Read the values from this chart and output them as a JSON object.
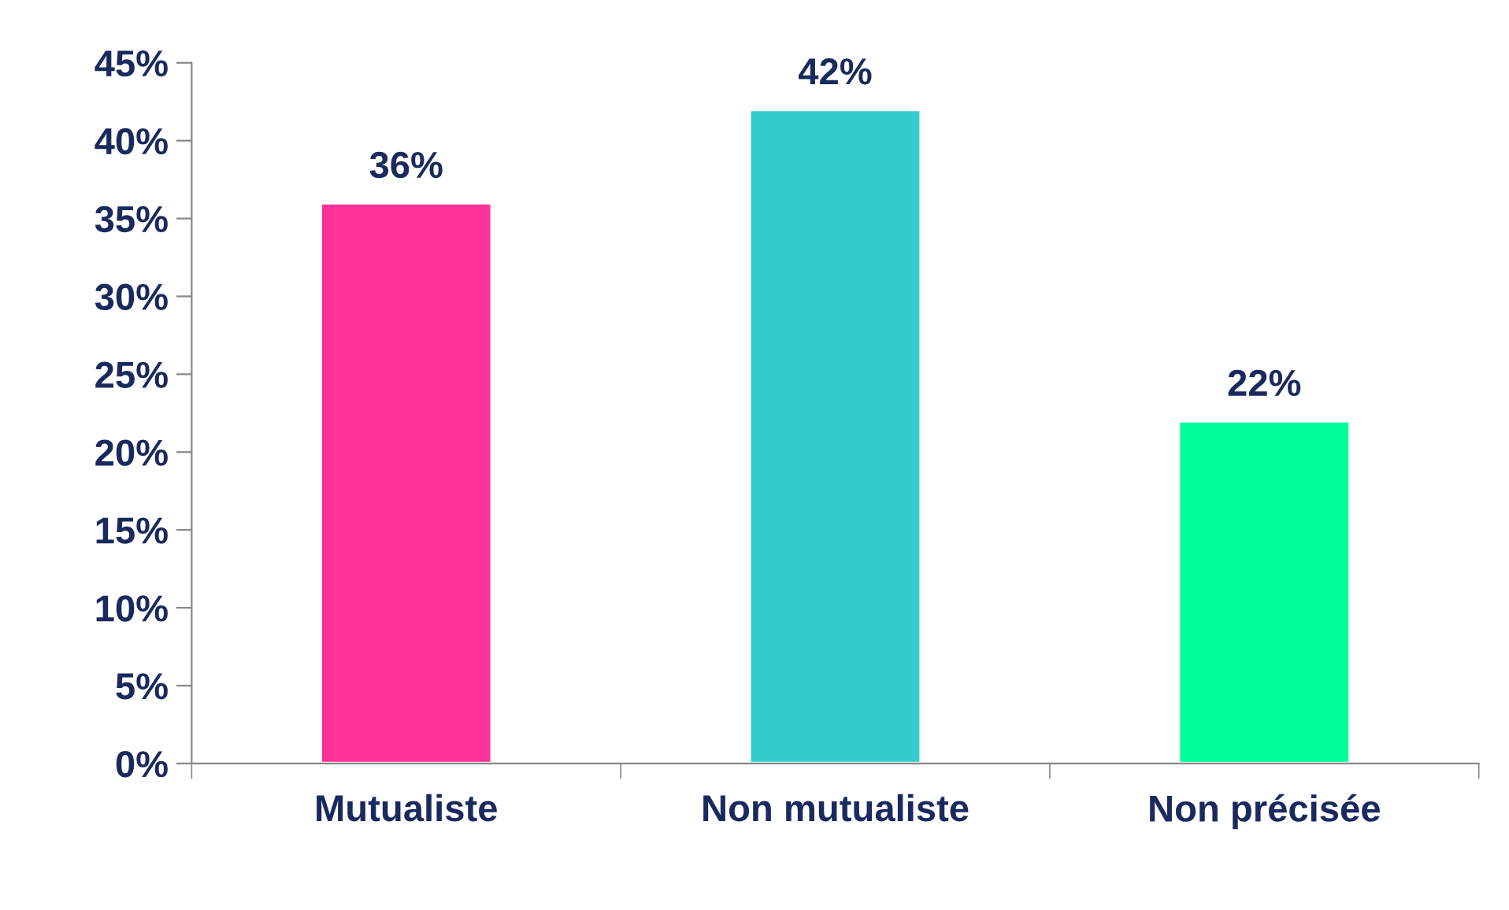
{
  "chart_data": {
    "type": "bar",
    "categories": [
      "Mutualiste",
      "Non mutualiste",
      "Non précisée"
    ],
    "values": [
      36,
      42,
      22
    ],
    "colors": [
      "#ff3399",
      "#33cccc",
      "#00ff99"
    ],
    "value_labels": [
      "36%",
      "42%",
      "22%"
    ],
    "ylim": [
      0,
      45
    ],
    "yticks": [
      {
        "value": 0,
        "label": "0%"
      },
      {
        "value": 5,
        "label": "5%"
      },
      {
        "value": 10,
        "label": "10%"
      },
      {
        "value": 15,
        "label": "15%"
      },
      {
        "value": 20,
        "label": "20%"
      },
      {
        "value": 25,
        "label": "25%"
      },
      {
        "value": 30,
        "label": "30%"
      },
      {
        "value": 35,
        "label": "35%"
      },
      {
        "value": 40,
        "label": "40%"
      },
      {
        "value": 45,
        "label": "45%"
      }
    ],
    "grid": false,
    "legend": false
  }
}
